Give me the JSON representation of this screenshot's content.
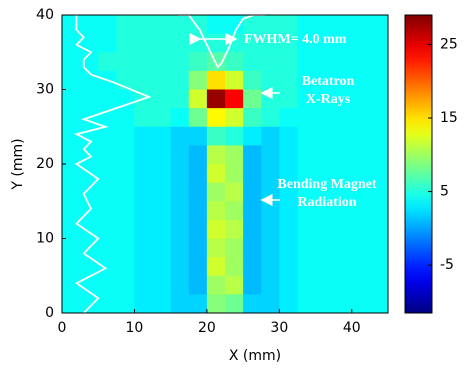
{
  "chart_data": {
    "type": "heatmap",
    "x_label": "X (mm)",
    "y_label": "Y (mm)",
    "xlim": [
      0,
      45
    ],
    "ylim": [
      0,
      40
    ],
    "xticks": [
      0,
      10,
      20,
      30,
      40
    ],
    "yticks": [
      0,
      10,
      20,
      30,
      40
    ],
    "colormap": "jet",
    "clim": [
      -11.5,
      29
    ],
    "colorbar_ticks": [
      -5,
      5,
      15,
      25
    ],
    "z": [
      [
        4,
        4,
        4,
        5,
        5,
        5,
        5,
        5,
        4,
        4,
        5,
        5,
        5,
        4,
        4,
        4,
        4,
        4
      ],
      [
        4,
        4,
        4,
        5,
        5,
        5,
        5,
        5,
        5,
        5,
        5,
        5,
        5,
        4,
        4,
        4,
        4,
        4
      ],
      [
        4,
        4,
        5,
        5,
        5,
        5,
        5,
        6,
        7,
        6,
        5,
        5,
        5,
        4,
        4,
        4,
        4,
        4
      ],
      [
        4,
        4,
        4,
        5,
        5,
        5,
        5,
        9,
        15,
        12,
        6,
        5,
        5,
        4,
        4,
        4,
        4,
        4
      ],
      [
        4,
        4,
        4,
        4,
        5,
        5,
        5,
        12,
        28,
        24,
        8,
        5,
        5,
        4,
        4,
        4,
        4,
        4
      ],
      [
        4,
        4,
        4,
        4,
        5,
        5,
        4,
        8,
        14,
        12,
        6,
        5,
        4,
        4,
        4,
        4,
        4,
        4
      ],
      [
        4,
        4,
        4,
        4,
        3,
        3,
        2,
        2,
        6,
        5,
        3,
        2,
        3,
        4,
        4,
        4,
        4,
        4
      ],
      [
        4,
        4,
        4,
        4,
        3,
        3,
        2,
        1,
        11,
        10,
        1,
        2,
        3,
        4,
        4,
        4,
        4,
        4
      ],
      [
        4,
        4,
        4,
        4,
        3,
        3,
        2,
        1,
        12,
        10,
        1,
        2,
        3,
        4,
        4,
        4,
        4,
        4
      ],
      [
        4,
        4,
        4,
        4,
        3,
        3,
        2,
        1,
        10,
        11,
        1,
        2,
        3,
        4,
        4,
        4,
        4,
        4
      ],
      [
        4,
        4,
        4,
        4,
        3,
        3,
        2,
        1,
        11,
        10,
        1,
        2,
        3,
        4,
        4,
        4,
        4,
        4
      ],
      [
        4,
        4,
        4,
        4,
        3,
        3,
        2,
        1,
        12,
        11,
        1,
        2,
        3,
        4,
        4,
        4,
        4,
        4
      ],
      [
        4,
        4,
        4,
        4,
        3,
        3,
        2,
        1,
        11,
        10,
        1,
        2,
        3,
        4,
        4,
        4,
        4,
        4
      ],
      [
        4,
        4,
        4,
        4,
        3,
        3,
        2,
        1,
        12,
        10,
        1,
        2,
        3,
        4,
        4,
        4,
        4,
        4
      ],
      [
        4,
        4,
        4,
        4,
        3,
        3,
        2,
        1,
        10,
        11,
        1,
        2,
        3,
        4,
        4,
        4,
        4,
        4
      ],
      [
        4,
        4,
        4,
        4,
        3,
        3,
        2,
        2,
        9,
        8,
        2,
        2,
        3,
        4,
        4,
        4,
        4,
        4
      ]
    ],
    "lines": [
      {
        "color": "#ffffff",
        "x": [
          3,
          5,
          2,
          6,
          3,
          5,
          2,
          4,
          3,
          5,
          2,
          4,
          3,
          4,
          2,
          6,
          3,
          12,
          7,
          4,
          3,
          3,
          4,
          2,
          3,
          2,
          2
        ],
        "y": [
          0,
          2,
          4,
          6,
          8,
          10,
          12,
          14,
          16,
          18,
          20,
          21,
          22,
          23,
          24,
          25,
          26,
          29,
          31,
          32,
          33,
          34,
          35,
          36,
          37,
          38,
          40
        ]
      },
      {
        "color": "#ffffff",
        "x": [
          16,
          17.5,
          19,
          20,
          21,
          21.5,
          22,
          23,
          24,
          25,
          26.5,
          28
        ],
        "y": [
          40,
          40,
          38,
          36,
          34,
          33,
          33.5,
          35.5,
          38,
          39.5,
          40,
          40
        ]
      }
    ],
    "annotations": [
      [
        "FWHM= 4.0 mm"
      ],
      [
        "Betatron",
        "X-Rays"
      ],
      [
        "Bending Magnet",
        "Radiation"
      ]
    ]
  }
}
